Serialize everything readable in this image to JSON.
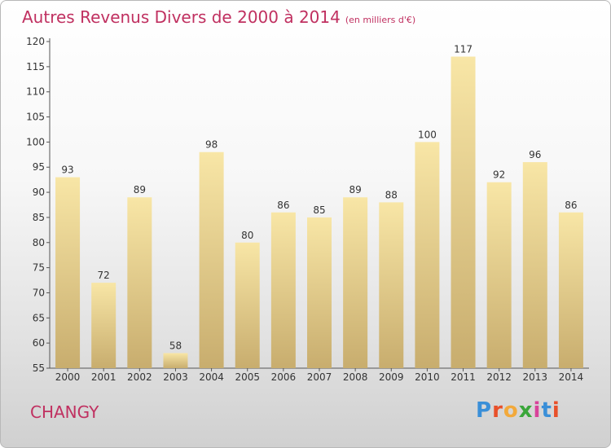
{
  "title": "Autres Revenus Divers de 2000 à 2014",
  "unit_note": "(en milliers d'€)",
  "commune": "CHANGY",
  "logo": {
    "text": "Proxiti",
    "colors": [
      "#3a8fd8",
      "#e8502a",
      "#f2a93b",
      "#3aa63a",
      "#d8429a",
      "#3a8fd8",
      "#e8502a"
    ]
  },
  "colors": {
    "title": "#c03060",
    "bar_light": "#f8e6a6",
    "bar_dark": "#c8ad6e",
    "axis": "#555555"
  },
  "chart_data": {
    "type": "bar",
    "categories": [
      "2000",
      "2001",
      "2002",
      "2003",
      "2004",
      "2005",
      "2006",
      "2007",
      "2008",
      "2009",
      "2010",
      "2011",
      "2012",
      "2013",
      "2014"
    ],
    "values": [
      93,
      72,
      89,
      58,
      98,
      80,
      86,
      85,
      89,
      88,
      100,
      117,
      92,
      96,
      86
    ],
    "ylim": [
      55,
      120
    ],
    "yticks": [
      55,
      60,
      65,
      70,
      75,
      80,
      85,
      90,
      95,
      100,
      105,
      110,
      115,
      120
    ],
    "grid": false,
    "data_labels": true
  }
}
